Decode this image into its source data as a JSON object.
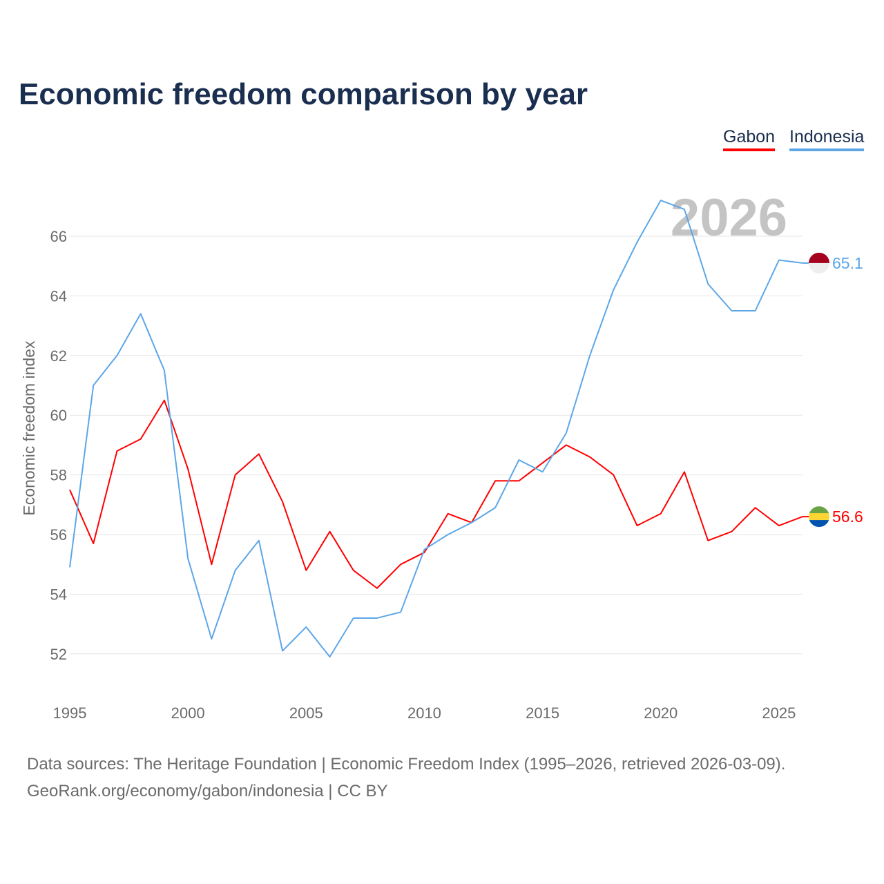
{
  "title": "Economic freedom comparison by year",
  "legend": [
    "Gabon",
    "Indonesia"
  ],
  "source_line1": "Data sources: The Heritage Foundation | Economic Freedom Index (1995–2026, retrieved 2026-03-09).",
  "source_line2": "GeoRank.org/economy/gabon/indonesia | CC BY",
  "chart_data": {
    "type": "line",
    "title": "Economic freedom comparison by year",
    "xlabel": "",
    "ylabel": "Economic freedom index",
    "year_watermark": "2026",
    "x": [
      1995,
      1996,
      1997,
      1998,
      1999,
      2000,
      2001,
      2002,
      2003,
      2004,
      2005,
      2006,
      2007,
      2008,
      2009,
      2010,
      2011,
      2012,
      2013,
      2014,
      2015,
      2016,
      2017,
      2018,
      2019,
      2020,
      2021,
      2022,
      2023,
      2024,
      2025,
      2026
    ],
    "xticks": [
      1995,
      2000,
      2005,
      2010,
      2015,
      2020,
      2025
    ],
    "yticks": [
      52,
      54,
      56,
      58,
      60,
      62,
      64,
      66
    ],
    "ylim": [
      51,
      67.6
    ],
    "grid": true,
    "legend_position": "top-right",
    "series": [
      {
        "name": "Gabon",
        "color": "#ff0000",
        "end_label": "56.6",
        "values": [
          57.5,
          55.7,
          58.8,
          59.2,
          60.5,
          58.2,
          55.0,
          58.0,
          58.7,
          57.1,
          54.8,
          56.1,
          54.8,
          54.2,
          55.0,
          55.4,
          56.7,
          56.4,
          57.8,
          57.8,
          58.4,
          59.0,
          58.6,
          58.0,
          56.3,
          56.7,
          58.1,
          55.8,
          56.1,
          56.9,
          56.3,
          56.6
        ]
      },
      {
        "name": "Indonesia",
        "color": "#5ca6e8",
        "end_label": "65.1",
        "values": [
          54.9,
          61.0,
          62.0,
          63.4,
          61.5,
          55.2,
          52.5,
          54.8,
          55.8,
          52.1,
          52.9,
          51.9,
          53.2,
          53.2,
          53.4,
          55.5,
          56.0,
          56.4,
          56.9,
          58.5,
          58.1,
          59.4,
          62.0,
          64.2,
          65.8,
          67.2,
          66.9,
          64.4,
          63.5,
          63.5,
          65.2,
          65.1
        ]
      }
    ]
  }
}
